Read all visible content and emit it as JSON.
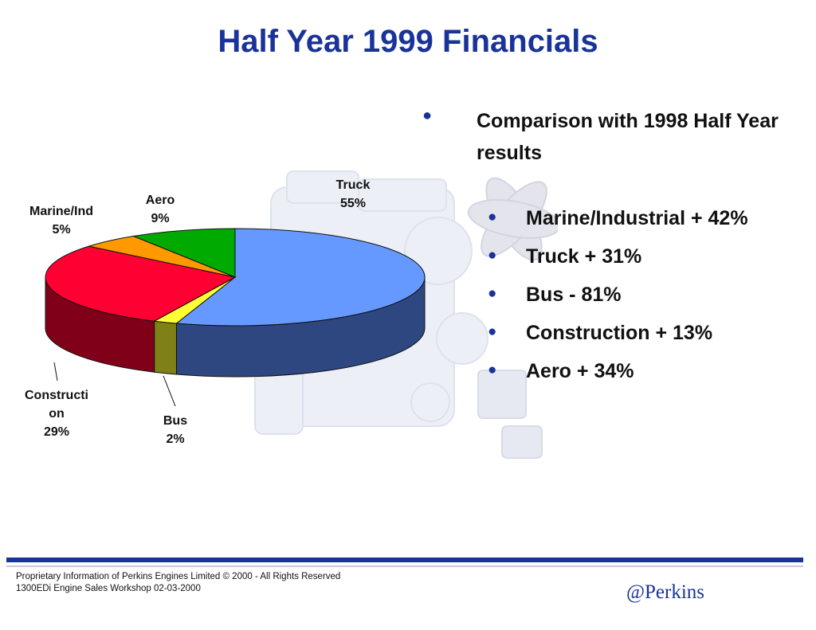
{
  "title": "Half Year 1999 Financials",
  "colors": {
    "accent": "#1a3399",
    "truck": "#6699ff",
    "truck_side": "#2e4780",
    "bus": "#ffff33",
    "bus_side": "#808019",
    "construction": "#ff0033",
    "construction_side": "#800019",
    "marine": "#ff9900",
    "aero": "#00aa00"
  },
  "chart_data": {
    "type": "pie",
    "title": "",
    "slices": [
      {
        "label": "Truck",
        "value": 55
      },
      {
        "label": "Bus",
        "value": 2
      },
      {
        "label": "Construction",
        "value": 29
      },
      {
        "label": "Marine/Ind",
        "value": 5
      },
      {
        "label": "Aero",
        "value": 9
      }
    ],
    "labels": {
      "truck": [
        "Truck",
        "55%"
      ],
      "bus": [
        "Bus",
        "2%"
      ],
      "construction": [
        "Constructi",
        "on",
        "29%"
      ],
      "marine": [
        "Marine/Ind",
        "5%"
      ],
      "aero": [
        "Aero",
        "9%"
      ]
    }
  },
  "bullets": {
    "main": "Comparison with 1998 Half Year results",
    "items": [
      "Marine/Industrial + 42%",
      "Truck + 31%",
      "Bus - 81%",
      "Construction + 13%",
      "Aero + 34%"
    ]
  },
  "footer": {
    "line1": "Proprietary Information of Perkins Engines Limited © 2000 - All Rights Reserved",
    "line2": "1300EDi Engine Sales Workshop 02-03-2000"
  },
  "brand": "@Perkins"
}
